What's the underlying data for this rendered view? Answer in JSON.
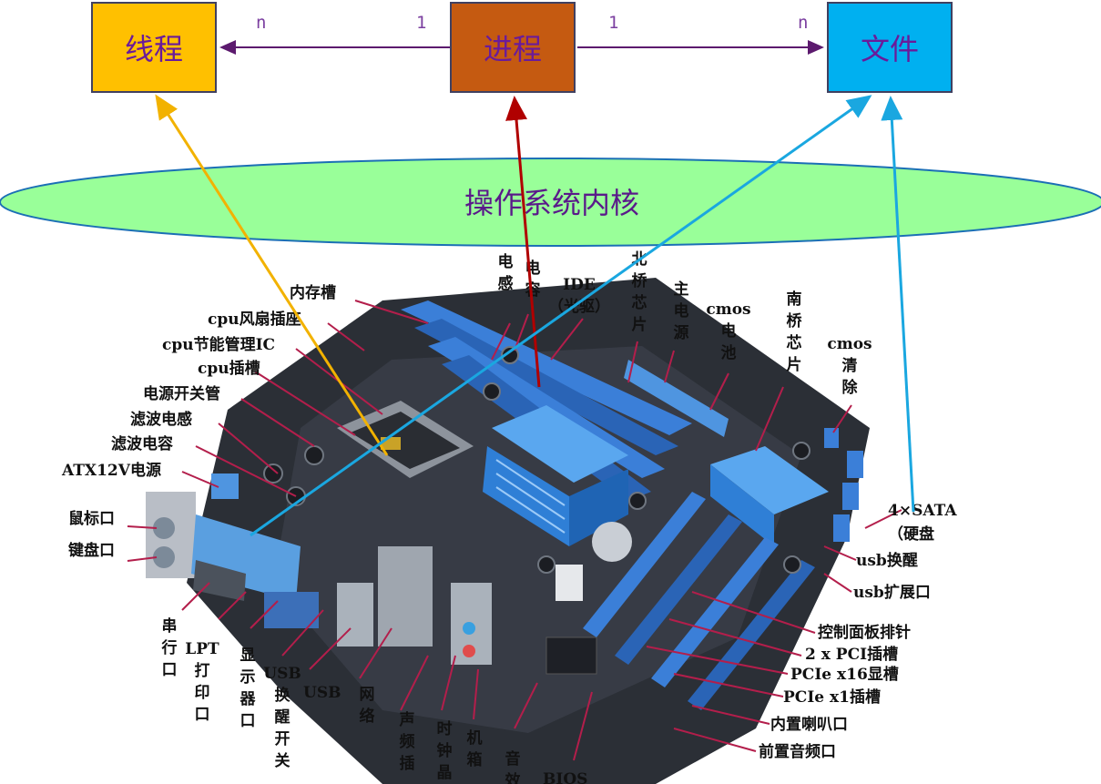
{
  "entities": {
    "thread": {
      "label": "线程",
      "color": "#ffc000"
    },
    "process": {
      "label": "进程",
      "color": "#c55a11"
    },
    "file": {
      "label": "文件",
      "color": "#00b0f0"
    }
  },
  "relations": {
    "thread_side": "n",
    "process_to_thread": "1",
    "process_to_file": "1",
    "file_side": "n"
  },
  "kernel": {
    "label": "操作系统内核",
    "color": "#99ff99"
  },
  "motherboard_labels": {
    "inductor": "电感",
    "capacitor": "电容",
    "ide": "IDE（光驱）",
    "north_bridge": "北桥芯片",
    "main_power": "主电源",
    "cmos_battery": "cmos电池",
    "south_bridge": "南桥芯片",
    "cmos_clear": "cmos清除",
    "memory_slot": "内存槽",
    "cpu_fan": "cpu风扇插座",
    "cpu_power_ic": "cpu节能管理IC",
    "cpu_socket": "cpu插槽",
    "power_switch": "电源开关管",
    "filter_inductor": "滤波电感",
    "filter_capacitor": "滤波电容",
    "atx12v": "ATX12V电源",
    "mouse_port": "鼠标口",
    "keyboard_port": "键盘口",
    "serial": "串行口",
    "lpt": "LPT打印口",
    "display": "显示器口",
    "usb_wake": "USB换醒开关",
    "usb": "USB",
    "network": "网络",
    "audio_in": "声频插",
    "clock": "时钟晶",
    "chassis": "机箱",
    "sound": "音效",
    "bios": "BIOS",
    "sata": "4×SATA",
    "sata_sub": "（硬盘",
    "usb_wakeup": "usb换醒",
    "usb_ext": "usb扩展口",
    "panel_pins": "控制面板排针",
    "pci_slots": "2 x PCI插槽",
    "pcie16": "PCIe x16显槽",
    "pcie1": "PCIe x1插槽",
    "speaker": "内置喇叭口",
    "front_audio": "前置音频口"
  }
}
